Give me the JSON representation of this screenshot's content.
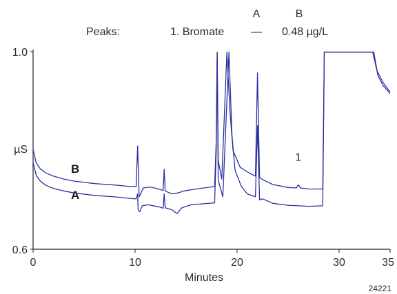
{
  "chart_data": {
    "type": "line",
    "xlabel": "Minutes",
    "ylabel": "µS",
    "xlim": [
      0,
      35
    ],
    "ylim": [
      0.6,
      1.0
    ],
    "x_ticks": [
      "0",
      "10",
      "20",
      "30",
      "35"
    ],
    "y_ticks": [
      "0.6",
      "1.0"
    ],
    "grid": false,
    "line_color": "#2a2f9e",
    "legend": {
      "peaks_label": "Peaks:",
      "col_a_header": "A",
      "col_b_header": "B",
      "peak_name": "1. Bromate",
      "value_a": "—",
      "value_b": "0.48 µg/L"
    },
    "peak_annotation": {
      "label": "1",
      "x": 26.0,
      "y": 0.7705
    },
    "figure_id": "24221",
    "series": [
      {
        "name": "A",
        "points": [
          [
            0.0,
            0.776
          ],
          [
            0.3,
            0.75
          ],
          [
            0.7,
            0.738
          ],
          [
            1.2,
            0.73
          ],
          [
            2,
            0.723
          ],
          [
            3,
            0.718
          ],
          [
            4,
            0.714
          ],
          [
            6,
            0.709
          ],
          [
            8,
            0.706
          ],
          [
            9.5,
            0.703
          ],
          [
            10.1,
            0.702
          ],
          [
            10.25,
            0.712
          ],
          [
            10.3,
            0.68
          ],
          [
            10.45,
            0.676
          ],
          [
            10.7,
            0.688
          ],
          [
            11.3,
            0.69
          ],
          [
            12.3,
            0.686
          ],
          [
            12.75,
            0.683
          ],
          [
            12.85,
            0.712
          ],
          [
            12.95,
            0.684
          ],
          [
            13.6,
            0.68
          ],
          [
            14.1,
            0.672
          ],
          [
            14.6,
            0.684
          ],
          [
            15.5,
            0.69
          ],
          [
            17.8,
            0.694
          ],
          [
            17.95,
            0.8
          ],
          [
            18.05,
            0.999
          ],
          [
            18.15,
            0.74
          ],
          [
            18.6,
            0.706
          ],
          [
            19.2,
            0.999
          ],
          [
            19.5,
            0.83
          ],
          [
            19.8,
            0.76
          ],
          [
            20.4,
            0.728
          ],
          [
            21.0,
            0.712
          ],
          [
            21.8,
            0.706
          ],
          [
            22.0,
            0.85
          ],
          [
            22.2,
            0.7
          ],
          [
            22.5,
            0.702
          ],
          [
            23.5,
            0.693
          ],
          [
            25,
            0.689
          ],
          [
            27,
            0.687
          ],
          [
            28.4,
            0.688
          ],
          [
            28.55,
            0.999
          ],
          [
            33.4,
            0.999
          ],
          [
            33.8,
            0.952
          ],
          [
            34.3,
            0.932
          ],
          [
            35.0,
            0.915
          ]
        ]
      },
      {
        "name": "B",
        "points": [
          [
            0.0,
            0.802
          ],
          [
            0.3,
            0.775
          ],
          [
            0.7,
            0.763
          ],
          [
            1.2,
            0.755
          ],
          [
            2,
            0.748
          ],
          [
            3,
            0.742
          ],
          [
            4,
            0.738
          ],
          [
            6,
            0.733
          ],
          [
            8,
            0.73
          ],
          [
            9.5,
            0.727
          ],
          [
            10.1,
            0.727
          ],
          [
            10.25,
            0.809
          ],
          [
            10.4,
            0.706
          ],
          [
            10.55,
            0.712
          ],
          [
            10.8,
            0.724
          ],
          [
            11.5,
            0.726
          ],
          [
            12.3,
            0.722
          ],
          [
            12.75,
            0.719
          ],
          [
            12.85,
            0.762
          ],
          [
            12.95,
            0.718
          ],
          [
            13.6,
            0.712
          ],
          [
            14.2,
            0.714
          ],
          [
            14.8,
            0.718
          ],
          [
            16,
            0.722
          ],
          [
            17.8,
            0.727
          ],
          [
            17.95,
            0.82
          ],
          [
            18.05,
            0.999
          ],
          [
            18.15,
            0.78
          ],
          [
            18.5,
            0.742
          ],
          [
            19.0,
            0.999
          ],
          [
            19.3,
            0.88
          ],
          [
            19.6,
            0.8
          ],
          [
            20.3,
            0.766
          ],
          [
            21.2,
            0.754
          ],
          [
            21.8,
            0.748
          ],
          [
            22.0,
            0.957
          ],
          [
            22.2,
            0.745
          ],
          [
            22.6,
            0.74
          ],
          [
            23.5,
            0.731
          ],
          [
            25,
            0.725
          ],
          [
            25.8,
            0.724
          ],
          [
            26.0,
            0.7305
          ],
          [
            26.2,
            0.724
          ],
          [
            27,
            0.722
          ],
          [
            28.4,
            0.722
          ],
          [
            28.55,
            0.999
          ],
          [
            33.3,
            0.999
          ],
          [
            33.7,
            0.962
          ],
          [
            34.3,
            0.938
          ],
          [
            35.0,
            0.918
          ]
        ]
      }
    ]
  }
}
